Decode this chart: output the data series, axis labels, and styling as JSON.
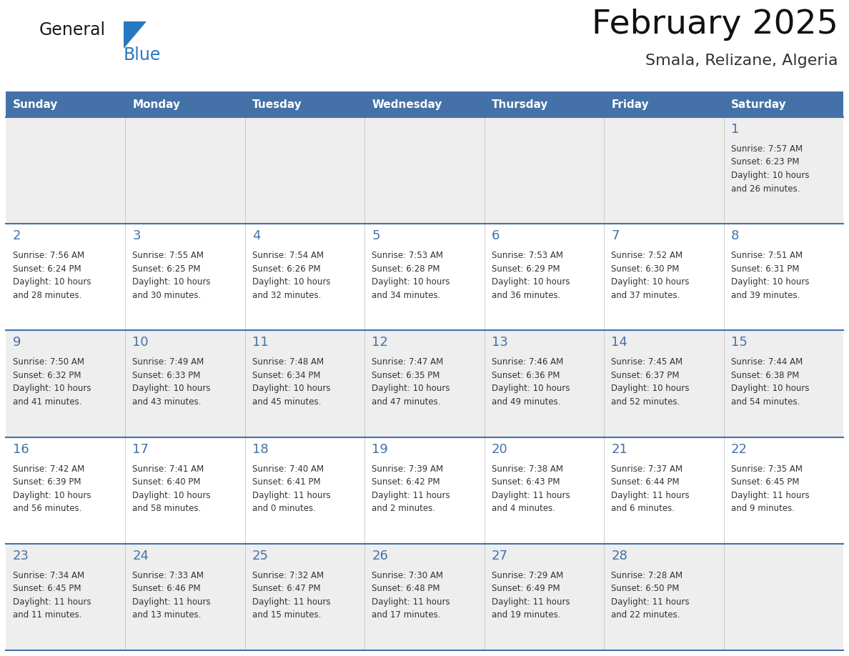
{
  "title": "February 2025",
  "subtitle": "Smala, Relizane, Algeria",
  "days_of_week": [
    "Sunday",
    "Monday",
    "Tuesday",
    "Wednesday",
    "Thursday",
    "Friday",
    "Saturday"
  ],
  "header_bg": "#4472A8",
  "header_text": "#FFFFFF",
  "cell_bg_light": "#EEEEEE",
  "cell_bg_white": "#FFFFFF",
  "day_num_color": "#4472A8",
  "text_color": "#333333",
  "line_color": "#4472A8",
  "logo_black": "#1a1a1a",
  "logo_blue": "#2878C0",
  "logo_triangle": "#2878C0",
  "calendar_data": [
    [
      null,
      null,
      null,
      null,
      null,
      null,
      {
        "day": 1,
        "sunrise": "7:57 AM",
        "sunset": "6:23 PM",
        "daylight_line1": "Daylight: 10 hours",
        "daylight_line2": "and 26 minutes."
      }
    ],
    [
      {
        "day": 2,
        "sunrise": "7:56 AM",
        "sunset": "6:24 PM",
        "daylight_line1": "Daylight: 10 hours",
        "daylight_line2": "and 28 minutes."
      },
      {
        "day": 3,
        "sunrise": "7:55 AM",
        "sunset": "6:25 PM",
        "daylight_line1": "Daylight: 10 hours",
        "daylight_line2": "and 30 minutes."
      },
      {
        "day": 4,
        "sunrise": "7:54 AM",
        "sunset": "6:26 PM",
        "daylight_line1": "Daylight: 10 hours",
        "daylight_line2": "and 32 minutes."
      },
      {
        "day": 5,
        "sunrise": "7:53 AM",
        "sunset": "6:28 PM",
        "daylight_line1": "Daylight: 10 hours",
        "daylight_line2": "and 34 minutes."
      },
      {
        "day": 6,
        "sunrise": "7:53 AM",
        "sunset": "6:29 PM",
        "daylight_line1": "Daylight: 10 hours",
        "daylight_line2": "and 36 minutes."
      },
      {
        "day": 7,
        "sunrise": "7:52 AM",
        "sunset": "6:30 PM",
        "daylight_line1": "Daylight: 10 hours",
        "daylight_line2": "and 37 minutes."
      },
      {
        "day": 8,
        "sunrise": "7:51 AM",
        "sunset": "6:31 PM",
        "daylight_line1": "Daylight: 10 hours",
        "daylight_line2": "and 39 minutes."
      }
    ],
    [
      {
        "day": 9,
        "sunrise": "7:50 AM",
        "sunset": "6:32 PM",
        "daylight_line1": "Daylight: 10 hours",
        "daylight_line2": "and 41 minutes."
      },
      {
        "day": 10,
        "sunrise": "7:49 AM",
        "sunset": "6:33 PM",
        "daylight_line1": "Daylight: 10 hours",
        "daylight_line2": "and 43 minutes."
      },
      {
        "day": 11,
        "sunrise": "7:48 AM",
        "sunset": "6:34 PM",
        "daylight_line1": "Daylight: 10 hours",
        "daylight_line2": "and 45 minutes."
      },
      {
        "day": 12,
        "sunrise": "7:47 AM",
        "sunset": "6:35 PM",
        "daylight_line1": "Daylight: 10 hours",
        "daylight_line2": "and 47 minutes."
      },
      {
        "day": 13,
        "sunrise": "7:46 AM",
        "sunset": "6:36 PM",
        "daylight_line1": "Daylight: 10 hours",
        "daylight_line2": "and 49 minutes."
      },
      {
        "day": 14,
        "sunrise": "7:45 AM",
        "sunset": "6:37 PM",
        "daylight_line1": "Daylight: 10 hours",
        "daylight_line2": "and 52 minutes."
      },
      {
        "day": 15,
        "sunrise": "7:44 AM",
        "sunset": "6:38 PM",
        "daylight_line1": "Daylight: 10 hours",
        "daylight_line2": "and 54 minutes."
      }
    ],
    [
      {
        "day": 16,
        "sunrise": "7:42 AM",
        "sunset": "6:39 PM",
        "daylight_line1": "Daylight: 10 hours",
        "daylight_line2": "and 56 minutes."
      },
      {
        "day": 17,
        "sunrise": "7:41 AM",
        "sunset": "6:40 PM",
        "daylight_line1": "Daylight: 10 hours",
        "daylight_line2": "and 58 minutes."
      },
      {
        "day": 18,
        "sunrise": "7:40 AM",
        "sunset": "6:41 PM",
        "daylight_line1": "Daylight: 11 hours",
        "daylight_line2": "and 0 minutes."
      },
      {
        "day": 19,
        "sunrise": "7:39 AM",
        "sunset": "6:42 PM",
        "daylight_line1": "Daylight: 11 hours",
        "daylight_line2": "and 2 minutes."
      },
      {
        "day": 20,
        "sunrise": "7:38 AM",
        "sunset": "6:43 PM",
        "daylight_line1": "Daylight: 11 hours",
        "daylight_line2": "and 4 minutes."
      },
      {
        "day": 21,
        "sunrise": "7:37 AM",
        "sunset": "6:44 PM",
        "daylight_line1": "Daylight: 11 hours",
        "daylight_line2": "and 6 minutes."
      },
      {
        "day": 22,
        "sunrise": "7:35 AM",
        "sunset": "6:45 PM",
        "daylight_line1": "Daylight: 11 hours",
        "daylight_line2": "and 9 minutes."
      }
    ],
    [
      {
        "day": 23,
        "sunrise": "7:34 AM",
        "sunset": "6:45 PM",
        "daylight_line1": "Daylight: 11 hours",
        "daylight_line2": "and 11 minutes."
      },
      {
        "day": 24,
        "sunrise": "7:33 AM",
        "sunset": "6:46 PM",
        "daylight_line1": "Daylight: 11 hours",
        "daylight_line2": "and 13 minutes."
      },
      {
        "day": 25,
        "sunrise": "7:32 AM",
        "sunset": "6:47 PM",
        "daylight_line1": "Daylight: 11 hours",
        "daylight_line2": "and 15 minutes."
      },
      {
        "day": 26,
        "sunrise": "7:30 AM",
        "sunset": "6:48 PM",
        "daylight_line1": "Daylight: 11 hours",
        "daylight_line2": "and 17 minutes."
      },
      {
        "day": 27,
        "sunrise": "7:29 AM",
        "sunset": "6:49 PM",
        "daylight_line1": "Daylight: 11 hours",
        "daylight_line2": "and 19 minutes."
      },
      {
        "day": 28,
        "sunrise": "7:28 AM",
        "sunset": "6:50 PM",
        "daylight_line1": "Daylight: 11 hours",
        "daylight_line2": "and 22 minutes."
      },
      null
    ]
  ]
}
